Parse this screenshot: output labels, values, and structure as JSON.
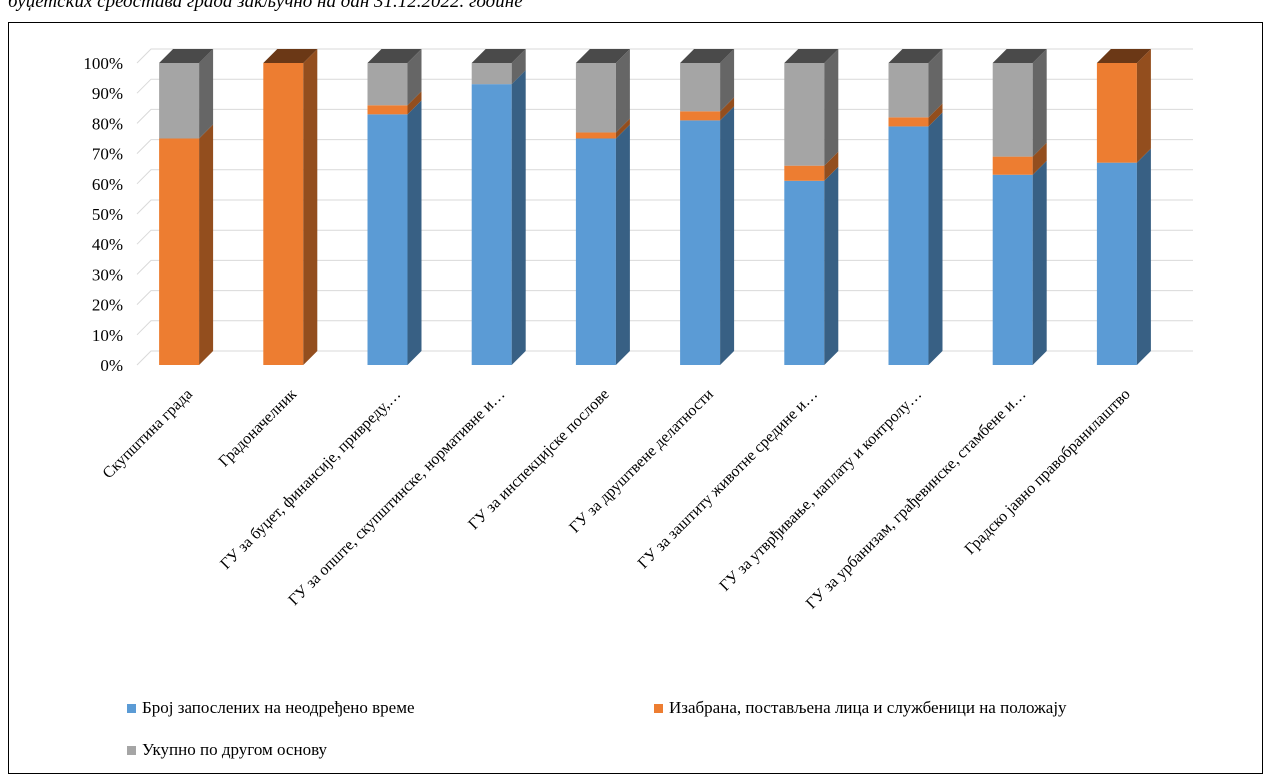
{
  "caption": "буџетских средстава града закључно на дан 31.12.2022. године",
  "chart_data": {
    "type": "bar",
    "stacked": true,
    "percent_stacked": true,
    "three_d": true,
    "title": "",
    "xlabel": "",
    "ylabel": "",
    "ylim": [
      0,
      100
    ],
    "y_ticks": [
      "0%",
      "10%",
      "20%",
      "30%",
      "40%",
      "50%",
      "60%",
      "70%",
      "80%",
      "90%",
      "100%"
    ],
    "grid": true,
    "legend_position": "bottom",
    "categories": [
      "Скупштина града",
      "Градоначелник",
      "ГУ за буџет, финансије, привреду,…",
      "ГУ за опште, скупштинске, нормативне и…",
      "ГУ за инспекцијске послове",
      "ГУ за друштвене делатности",
      "ГУ за заштиту животне средине и…",
      "ГУ за утврђивање, наплату и контролу…",
      "ГУ за урбанизам, грађевинске, стамбене и…",
      "Градско јавно правобранилаштво"
    ],
    "series": [
      {
        "name": "Број запослених на неодређено време",
        "color": "#5B9BD5",
        "values": [
          0,
          0,
          83,
          93,
          75,
          81,
          61,
          79,
          63,
          67
        ]
      },
      {
        "name": "Изабрана, постављена лица и службеници на положају",
        "color": "#ED7D31",
        "values": [
          75,
          100,
          3,
          0,
          2,
          3,
          5,
          3,
          6,
          33
        ]
      },
      {
        "name": "Укупно по другом основу",
        "color": "#A5A5A5",
        "values": [
          25,
          0,
          14,
          7,
          23,
          16,
          34,
          18,
          31,
          0
        ]
      }
    ]
  }
}
